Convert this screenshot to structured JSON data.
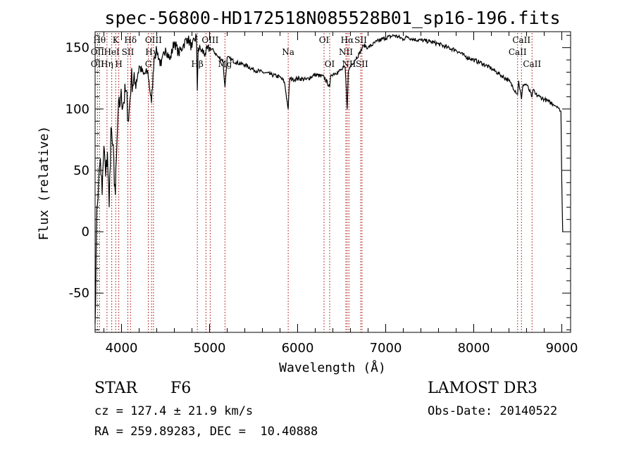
{
  "chart_data": {
    "type": "line",
    "title": "spec-56800-HD172518N085528B01_sp16-196.fits",
    "xlabel": "Wavelength (Å)",
    "ylabel": "Flux (relative)",
    "xlim": [
      3700,
      9100
    ],
    "ylim": [
      -82,
      163
    ],
    "xticks": [
      4000,
      5000,
      6000,
      7000,
      8000,
      9000
    ],
    "yticks": [
      -50,
      0,
      50,
      100,
      150
    ],
    "grid": false,
    "line_color": "#000000",
    "marker_color": "#aa0000",
    "series": [
      {
        "x": [
          3700,
          3720,
          3740,
          3760,
          3780,
          3800,
          3820,
          3840,
          3860,
          3880,
          3900,
          3930,
          3960,
          3990,
          4020,
          4050,
          4080,
          4110,
          4150,
          4200,
          4250,
          4300,
          4340,
          4370,
          4400,
          4450,
          4500,
          4550,
          4600,
          4650,
          4700,
          4750,
          4800,
          4850,
          4861,
          4870,
          4900,
          4950,
          5000,
          5050,
          5100,
          5150,
          5175,
          5200,
          5300,
          5400,
          5500,
          5600,
          5700,
          5800,
          5850,
          5893,
          5910,
          5950,
          6000,
          6100,
          6200,
          6300,
          6364,
          6380,
          6450,
          6500,
          6540,
          6563,
          6575,
          6600,
          6650,
          6700,
          6750,
          6800,
          6900,
          7000,
          7100,
          7200,
          7250,
          7300,
          7400,
          7500,
          7600,
          7700,
          7800,
          7900,
          8000,
          8100,
          8200,
          8300,
          8400,
          8498,
          8510,
          8542,
          8560,
          8600,
          8662,
          8680,
          8700,
          8750,
          8800,
          8850,
          8900,
          8950,
          8990,
          9000,
          9010
        ],
        "values": [
          -75,
          20,
          40,
          60,
          30,
          70,
          45,
          65,
          20,
          85,
          70,
          30,
          95,
          110,
          105,
          115,
          90,
          125,
          120,
          135,
          128,
          130,
          105,
          142,
          148,
          135,
          150,
          140,
          155,
          145,
          152,
          158,
          150,
          160,
          115,
          150,
          148,
          145,
          150,
          147,
          142,
          140,
          118,
          142,
          138,
          136,
          132,
          130,
          128,
          126,
          122,
          100,
          125,
          124,
          125,
          124,
          128,
          126,
          118,
          128,
          130,
          132,
          134,
          100,
          130,
          135,
          140,
          145,
          152,
          150,
          155,
          158,
          160,
          157,
          159,
          157,
          156,
          155,
          153,
          150,
          148,
          143,
          140,
          137,
          133,
          128,
          123,
          112,
          123,
          108,
          120,
          120,
          110,
          116,
          112,
          110,
          108,
          106,
          104,
          102,
          98,
          40,
          0
        ]
      }
    ],
    "line_markers": [
      {
        "wavelength": 3727,
        "label": "OII",
        "row": 0
      },
      {
        "wavelength": 3750,
        "label": "Hθ",
        "row": 0
      },
      {
        "wavelength": 3835,
        "label": "Hη",
        "row": 0
      },
      {
        "wavelength": 3889,
        "label": "HeI",
        "row": 0
      },
      {
        "wavelength": 3934,
        "label": "K",
        "row": 0
      },
      {
        "wavelength": 3969,
        "label": "H",
        "row": 0
      },
      {
        "wavelength": 4072,
        "label": "SII",
        "row": 0
      },
      {
        "wavelength": 4102,
        "label": "Hδ",
        "row": 0
      },
      {
        "wavelength": 4304,
        "label": "G",
        "row": 0
      },
      {
        "wavelength": 4341,
        "label": "Hγ",
        "row": 0
      },
      {
        "wavelength": 4363,
        "label": "OIII",
        "row": 0
      },
      {
        "wavelength": 4861,
        "label": "Hβ",
        "row": 0
      },
      {
        "wavelength": 4959,
        "label": "OIII",
        "row": 0
      },
      {
        "wavelength": 5007,
        "label": "OIII",
        "row": 0
      },
      {
        "wavelength": 5175,
        "label": "Mg",
        "row": 0
      },
      {
        "wavelength": 5893,
        "label": "Na",
        "row": 0
      },
      {
        "wavelength": 6300,
        "label": "OI",
        "row": 0
      },
      {
        "wavelength": 6364,
        "label": "OI",
        "row": 0
      },
      {
        "wavelength": 6548,
        "label": "NII",
        "row": 0
      },
      {
        "wavelength": 6563,
        "label": "Hα",
        "row": 0
      },
      {
        "wavelength": 6583,
        "label": "NII",
        "row": 0
      },
      {
        "wavelength": 6716,
        "label": "SII",
        "row": 0
      },
      {
        "wavelength": 6731,
        "label": "SII",
        "row": 0
      },
      {
        "wavelength": 8498,
        "label": "CaII",
        "row": 0
      },
      {
        "wavelength": 8542,
        "label": "CaII",
        "row": 0
      },
      {
        "wavelength": 8662,
        "label": "CaII",
        "row": 0
      }
    ]
  },
  "labels_visible": [
    {
      "text": "Hθ",
      "x": 3750,
      "row": 0
    },
    {
      "text": "K",
      "x": 3934,
      "row": 0
    },
    {
      "text": "Hδ",
      "x": 4102,
      "row": 0
    },
    {
      "text": "OIII",
      "x": 4363,
      "row": 0
    },
    {
      "text": "OIII",
      "x": 5007,
      "row": 0
    },
    {
      "text": "OI",
      "x": 6300,
      "row": 0
    },
    {
      "text": "Hα",
      "x": 6563,
      "row": 0
    },
    {
      "text": "SII",
      "x": 6716,
      "row": 0
    },
    {
      "text": "CaII",
      "x": 8542,
      "row": 0
    },
    {
      "text": "OII",
      "x": 3727,
      "row": 1
    },
    {
      "text": "HeI",
      "x": 3889,
      "row": 1
    },
    {
      "text": "SII",
      "x": 4072,
      "row": 1
    },
    {
      "text": "Hγ",
      "x": 4341,
      "row": 1
    },
    {
      "text": "Na",
      "x": 5893,
      "row": 1
    },
    {
      "text": "NII",
      "x": 6548,
      "row": 1
    },
    {
      "text": "CaII",
      "x": 8498,
      "row": 1
    },
    {
      "text": "OII",
      "x": 3727,
      "row": 2
    },
    {
      "text": "Hη",
      "x": 3835,
      "row": 2
    },
    {
      "text": "H",
      "x": 3969,
      "row": 2
    },
    {
      "text": "G",
      "x": 4304,
      "row": 2
    },
    {
      "text": "Hβ",
      "x": 4861,
      "row": 2
    },
    {
      "text": "Mg",
      "x": 5175,
      "row": 2
    },
    {
      "text": "OI",
      "x": 6364,
      "row": 2
    },
    {
      "text": "NII",
      "x": 6583,
      "row": 2
    },
    {
      "text": "SII",
      "x": 6731,
      "row": 2
    },
    {
      "text": "CaII",
      "x": 8662,
      "row": 2
    }
  ],
  "info": {
    "object_class": "STAR",
    "subclass": "F6",
    "survey": "LAMOST DR3",
    "cz": "cz = 127.4 ± 21.9 km/s",
    "obs_date": "Obs-Date: 20140522",
    "coords": "RA = 259.89283, DEC =  10.40888"
  }
}
